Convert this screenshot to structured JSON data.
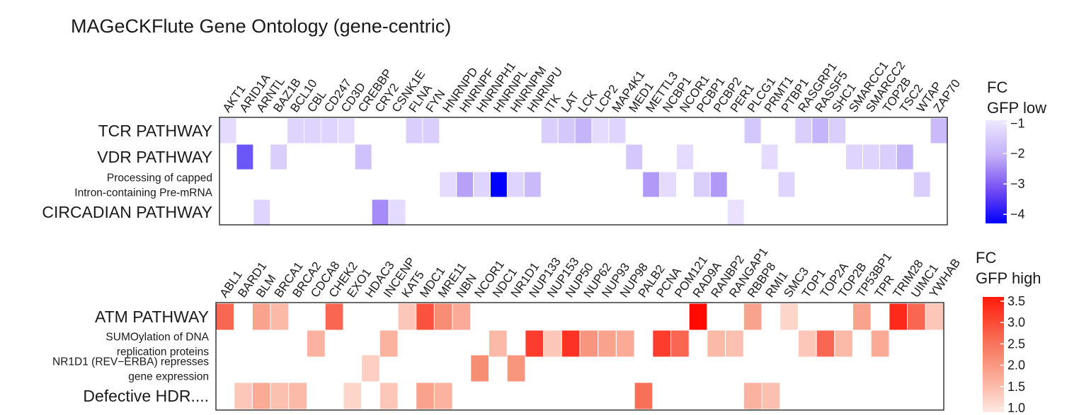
{
  "title": "MAGeCKFlute Gene Ontology (gene-centric)",
  "colors": {
    "low": "#0000ff",
    "high": "#ff0000",
    "empty": "#ffffff",
    "border": "#1a1a1a"
  },
  "chart_data": [
    {
      "type": "heatmap",
      "name": "GFP low",
      "genes": [
        "AKT1",
        "ARID1A",
        "ARNTL",
        "BAZ1B",
        "BCL10",
        "CBL",
        "CD247",
        "CD3D",
        "CREBBP",
        "CRY2",
        "CSNK1E",
        "FLNA",
        "FYN",
        "HNRNPD",
        "HNRNPF",
        "HNRNPH1",
        "HNRNPL",
        "HNRNPM",
        "HNRNPU",
        "ITK",
        "LAT",
        "LCK",
        "LCP2",
        "MAP4K1",
        "MED1",
        "METTL3",
        "NCBP1",
        "NCOR1",
        "PCBP1",
        "PCBP2",
        "PER1",
        "PLCG1",
        "PRMT1",
        "PTBP1",
        "RASGRP1",
        "RASSF5",
        "SHC1",
        "SMARCC1",
        "SMARCC2",
        "TOP2B",
        "TSC2",
        "WTAP",
        "ZAP70"
      ],
      "rows": [
        {
          "label_lines": [
            "TCR PATHWAY"
          ],
          "size": "large",
          "values": [
            -1.2,
            null,
            null,
            null,
            -1.3,
            -1.3,
            -1.3,
            -1.2,
            null,
            null,
            null,
            -1.4,
            -1.4,
            null,
            null,
            null,
            null,
            null,
            null,
            -1.4,
            -1.5,
            -1.8,
            -1.2,
            -1.3,
            null,
            null,
            null,
            null,
            null,
            null,
            null,
            -1.5,
            null,
            null,
            -1.4,
            -1.8,
            -1.4,
            null,
            null,
            null,
            null,
            null,
            -1.7
          ]
        },
        {
          "label_lines": [
            "VDR PATHWAY"
          ],
          "size": "large",
          "values": [
            null,
            -3.1,
            null,
            -1.4,
            null,
            null,
            null,
            null,
            -1.6,
            null,
            null,
            null,
            null,
            null,
            null,
            null,
            null,
            null,
            null,
            null,
            null,
            null,
            null,
            null,
            -1.5,
            null,
            null,
            -1.2,
            null,
            null,
            null,
            null,
            -1.2,
            null,
            null,
            null,
            null,
            -1.3,
            -1.3,
            -1.4,
            -1.8,
            null,
            null
          ]
        },
        {
          "label_lines": [
            "Processing of capped",
            "Intron-containing Pre-mRNA"
          ],
          "size": "small",
          "values": [
            null,
            null,
            null,
            null,
            null,
            null,
            null,
            null,
            null,
            null,
            null,
            null,
            null,
            -1.2,
            -2.1,
            -1.3,
            -4.2,
            -1.3,
            -1.7,
            null,
            null,
            null,
            null,
            null,
            null,
            -2.2,
            -1.2,
            null,
            -1.4,
            -2.2,
            null,
            null,
            null,
            -1.3,
            null,
            null,
            null,
            null,
            null,
            null,
            null,
            -1.4,
            null
          ]
        },
        {
          "label_lines": [
            "CIRCADIAN PATHWAY"
          ],
          "size": "large",
          "values": [
            null,
            null,
            -1.3,
            null,
            null,
            null,
            null,
            null,
            null,
            -2.4,
            -1.2,
            null,
            null,
            null,
            null,
            null,
            null,
            null,
            null,
            null,
            null,
            null,
            null,
            null,
            null,
            null,
            null,
            null,
            null,
            null,
            -1.1,
            null,
            null,
            null,
            null,
            null,
            null,
            null,
            null,
            null,
            null,
            null,
            null
          ]
        }
      ],
      "legend": {
        "title_lines": [
          "FC",
          "GFP low"
        ],
        "ticks": [
          -1,
          -2,
          -3,
          -4
        ],
        "tick_labels": [
          "−1",
          "−2",
          "−3",
          "−4"
        ],
        "range": [
          -4.3,
          -0.9
        ]
      }
    },
    {
      "type": "heatmap",
      "name": "GFP high",
      "genes": [
        "ABL1",
        "BARD1",
        "BLM",
        "BRCA1",
        "BRCA2",
        "CDCA8",
        "CHEK2",
        "EXO1",
        "HDAC3",
        "INCENP",
        "KAT5",
        "MDC1",
        "MRE11",
        "NBN",
        "NCOR1",
        "NDC1",
        "NR1D1",
        "NUP133",
        "NUP153",
        "NUP50",
        "NUP62",
        "NUP93",
        "NUP98",
        "PALB2",
        "PCNA",
        "POM121",
        "RAD9A",
        "RANBP2",
        "RANGAP1",
        "RBBP8",
        "RMI1",
        "SMC3",
        "TOP1",
        "TOP2A",
        "TOP2B",
        "TP53BP1",
        "TPR",
        "TRIM28",
        "UIMC1",
        "YWHAB"
      ],
      "rows": [
        {
          "label_lines": [
            "ATM PATHWAY"
          ],
          "size": "large",
          "values": [
            2.6,
            null,
            1.9,
            1.6,
            null,
            null,
            2.6,
            null,
            null,
            null,
            1.4,
            2.8,
            2.2,
            1.8,
            null,
            null,
            null,
            null,
            null,
            null,
            null,
            null,
            null,
            null,
            null,
            null,
            3.5,
            null,
            null,
            1.9,
            null,
            1.2,
            null,
            null,
            null,
            1.9,
            null,
            3.2,
            2.6,
            1.4
          ]
        },
        {
          "label_lines": [
            "SUMOylation of DNA",
            "replication proteins"
          ],
          "size": "small",
          "values": [
            null,
            null,
            null,
            null,
            null,
            1.7,
            null,
            null,
            null,
            1.7,
            null,
            null,
            null,
            null,
            null,
            1.6,
            null,
            3.0,
            1.4,
            3.1,
            2.1,
            1.9,
            1.8,
            null,
            3.0,
            2.6,
            null,
            1.6,
            1.5,
            null,
            null,
            null,
            1.4,
            2.6,
            1.6,
            null,
            1.8,
            null,
            null,
            null
          ]
        },
        {
          "label_lines": [
            "NR1D1 (REV−ERBA) represses",
            "gene expression"
          ],
          "size": "small",
          "values": [
            null,
            null,
            null,
            null,
            null,
            null,
            null,
            null,
            1.3,
            null,
            null,
            null,
            null,
            null,
            2.2,
            null,
            2.1,
            null,
            null,
            null,
            null,
            null,
            null,
            null,
            null,
            null,
            null,
            null,
            null,
            null,
            null,
            null,
            null,
            null,
            null,
            null,
            null,
            null,
            null,
            null
          ]
        },
        {
          "label_lines": [
            "Defective HDR...."
          ],
          "size": "large",
          "values": [
            null,
            1.4,
            1.8,
            1.5,
            1.6,
            null,
            null,
            1.2,
            null,
            1.4,
            null,
            1.9,
            1.7,
            null,
            null,
            null,
            null,
            null,
            null,
            null,
            null,
            null,
            null,
            2.5,
            null,
            null,
            null,
            null,
            null,
            1.7,
            1.5,
            null,
            null,
            null,
            null,
            null,
            null,
            null,
            null,
            null
          ]
        }
      ],
      "legend": {
        "title_lines": [
          "FC",
          "GFP high"
        ],
        "ticks": [
          3.5,
          3.0,
          2.5,
          2.0,
          1.5,
          1.0
        ],
        "tick_labels": [
          "3.5",
          "3.0",
          "2.5",
          "2.0",
          "1.5",
          "1.0"
        ],
        "range": [
          0.9,
          3.6
        ]
      }
    }
  ]
}
